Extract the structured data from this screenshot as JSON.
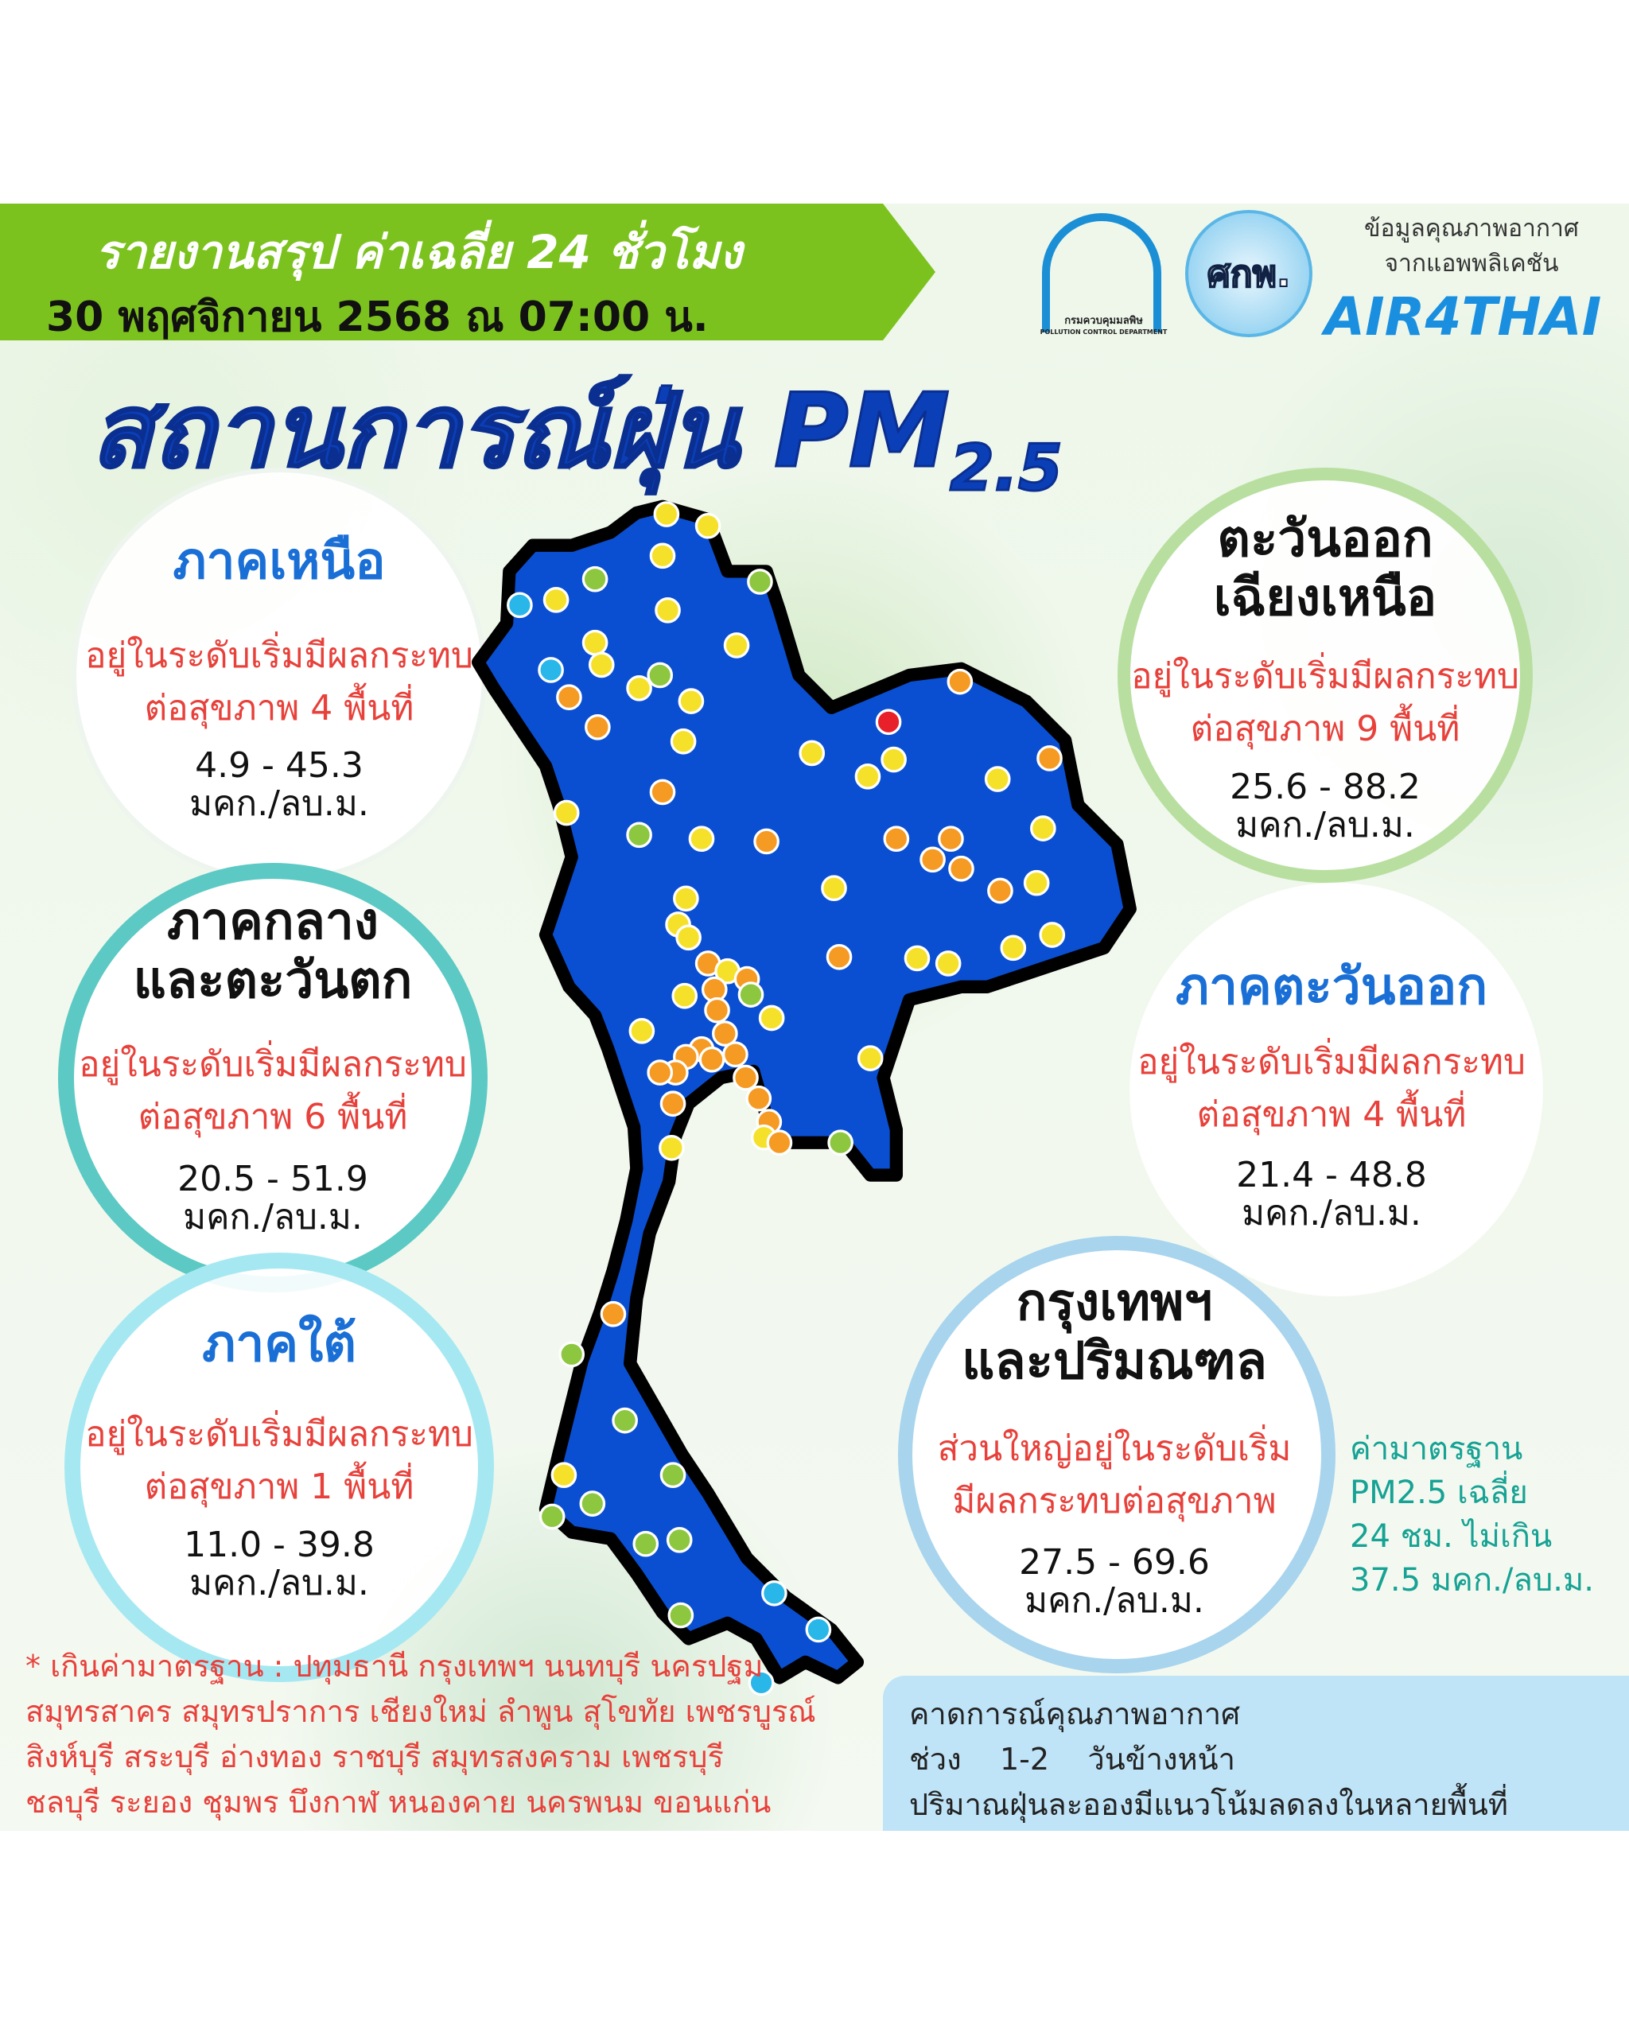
{
  "header": {
    "report_title": "รายงานสรุป ค่าเฉลี่ย 24 ชั่วโมง",
    "datetime": "30 พฤศจิกายน 2568 ณ 07:00 น.",
    "logo_pcd_text": "กรมควบคุมมลพิษ",
    "logo_pcd_en": "POLLUTION CONTROL DEPARTMENT",
    "logo_2_text": "ศกพ.",
    "app_line1": "ข้อมูลคุณภาพอากาศ",
    "app_line2": "จากแอพพลิเคชัน",
    "app_name": "AIR4THAI"
  },
  "title": {
    "main": "สถานการณ์ฝุ่น PM",
    "sub": "2.5"
  },
  "regions": {
    "north": {
      "name": "ภาคเหนือ",
      "status1": "อยู่ในระดับเริ่มมีผลกระทบ",
      "status2": "ต่อสุขภาพ 4 พื้นที่",
      "range": "4.9 - 45.3",
      "unit": "มคก./ลบ.ม."
    },
    "northeast": {
      "name1": "ตะวันออก",
      "name2": "เฉียงเหนือ",
      "status1": "อยู่ในระดับเริ่มมีผลกระทบ",
      "status2": "ต่อสุขภาพ 9 พื้นที่",
      "range": "25.6 - 88.2",
      "unit": "มคก./ลบ.ม."
    },
    "central": {
      "name1": "ภาคกลาง",
      "name2": "และตะวันตก",
      "status1": "อยู่ในระดับเริ่มมีผลกระทบ",
      "status2": "ต่อสุขภาพ 6 พื้นที่",
      "range": "20.5 - 51.9",
      "unit": "มคก./ลบ.ม."
    },
    "east": {
      "name": "ภาคตะวันออก",
      "status1": "อยู่ในระดับเริ่มมีผลกระทบ",
      "status2": "ต่อสุขภาพ 4 พื้นที่",
      "range": "21.4 - 48.8",
      "unit": "มคก./ลบ.ม."
    },
    "south": {
      "name": "ภาคใต้",
      "status1": "อยู่ในระดับเริ่มมีผลกระทบ",
      "status2": "ต่อสุขภาพ 1 พื้นที่",
      "range": "11.0 - 39.8",
      "unit": "มคก./ลบ.ม."
    },
    "bangkok": {
      "name1": "กรุงเทพฯ",
      "name2": "และปริมณฑล",
      "status1": "ส่วนใหญ่อยู่ในระดับเริ่ม",
      "status2": "มีผลกระทบต่อสุขภาพ",
      "range": "27.5 - 69.6",
      "unit": "มคก./ลบ.ม."
    }
  },
  "standard": {
    "line1": "ค่ามาตรฐาน",
    "line2": "PM2.5 เฉลี่ย",
    "line3": "24 ชม. ไม่เกิน",
    "line4": "37.5 มคก./ลบ.ม."
  },
  "footnote": {
    "line1": "* เกินค่ามาตรฐาน :  ปทุมธานี กรุงเทพฯ นนทบุรี นครปฐม",
    "line2": "สมุทรสาคร สมุทรปราการ เชียงใหม่ ลำพูน สุโขทัย เพชรบูรณ์",
    "line3": "สิงห์บุรี สระบุรี อ่างทอง ราชบุรี สมุทรสงคราม เพชรบุรี",
    "line4": "ชลบุรี ระยอง ชุมพร บึงกาฬ หนองคาย นครพนม ขอนแก่น"
  },
  "forecast": {
    "line1": "คาดการณ์คุณภาพอากาศ",
    "line2": "ช่วง    1-2    วันข้างหน้า",
    "line3": "ปริมาณฝุ่นละอองมีแนวโน้มลดลงในหลายพื้นที่"
  },
  "colors": {
    "map_fill": "#0a4fd1",
    "level_very_good": "#29b6e8",
    "level_good": "#8dc63f",
    "level_moderate": "#f5e12a",
    "level_unhealthy_sensitive": "#f59a23",
    "level_unhealthy": "#e8202a"
  }
}
